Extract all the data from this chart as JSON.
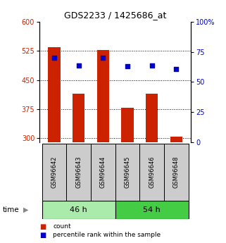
{
  "title": "GDS2233 / 1425686_at",
  "samples": [
    "GSM96642",
    "GSM96643",
    "GSM96644",
    "GSM96645",
    "GSM96646",
    "GSM96648"
  ],
  "counts": [
    535,
    415,
    527,
    378,
    415,
    305
  ],
  "percentiles": [
    70,
    64,
    70,
    63,
    64,
    61
  ],
  "ylim_left": [
    290,
    600
  ],
  "ylim_right": [
    0,
    100
  ],
  "yticks_left": [
    300,
    375,
    450,
    525,
    600
  ],
  "yticks_right": [
    0,
    25,
    50,
    75,
    100
  ],
  "ytick_labels_right": [
    "0",
    "25",
    "50",
    "75",
    "100%"
  ],
  "bar_color": "#cc2200",
  "marker_color": "#0000cc",
  "bar_bottom": 290,
  "groups": [
    {
      "label": "46 h",
      "indices": [
        0,
        1,
        2
      ],
      "color": "#aaeaaa"
    },
    {
      "label": "54 h",
      "indices": [
        3,
        4,
        5
      ],
      "color": "#44cc44"
    }
  ],
  "legend_items": [
    {
      "label": "count",
      "color": "#cc2200"
    },
    {
      "label": "percentile rank within the sample",
      "color": "#0000cc"
    }
  ],
  "grid_color": "#000000",
  "sample_box_color": "#cccccc",
  "title_fontsize": 9,
  "tick_fontsize": 7,
  "bar_width": 0.5
}
